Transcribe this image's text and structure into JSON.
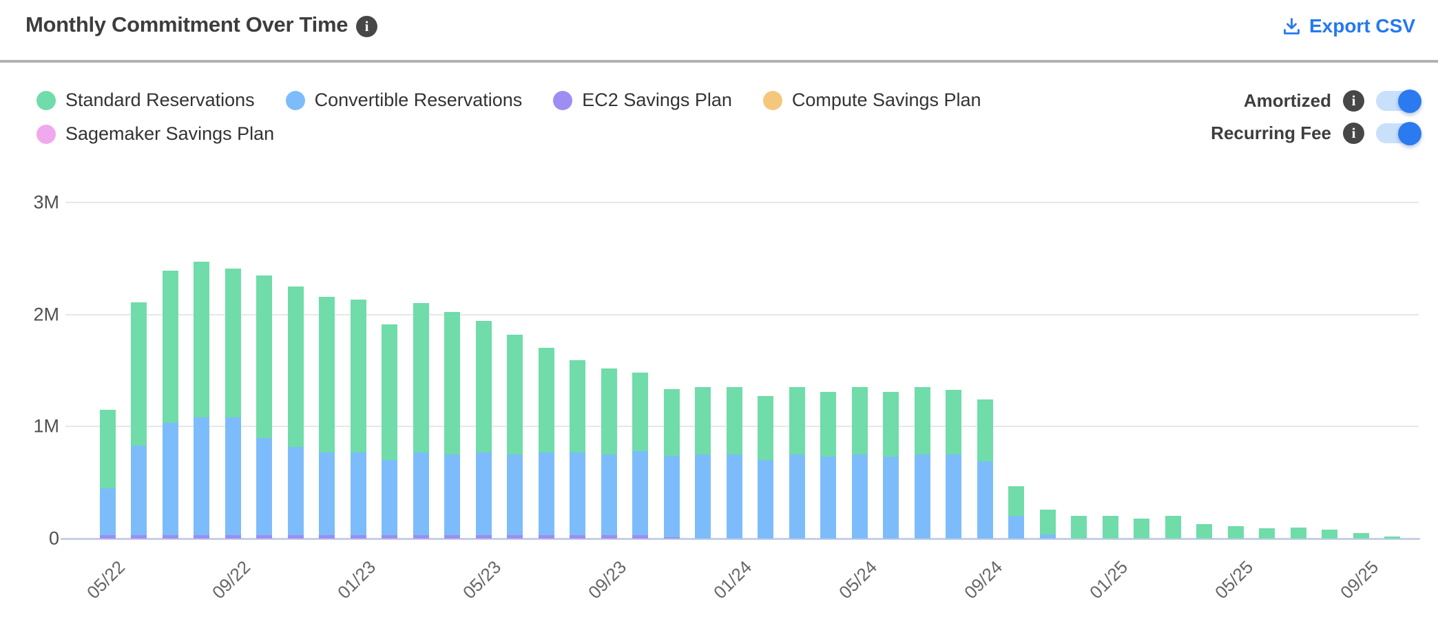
{
  "header": {
    "title": "Monthly Commitment Over Time",
    "title_info_icon": "info-icon",
    "export_csv": {
      "label": "Export CSV",
      "icon": "download-icon"
    }
  },
  "legend": {
    "items": [
      {
        "label": "Standard Reservations",
        "color": "#6FDCAA"
      },
      {
        "label": "Convertible Reservations",
        "color": "#7DBCFA"
      },
      {
        "label": "EC2 Savings Plan",
        "color": "#9E8DF2"
      },
      {
        "label": "Compute Savings Plan",
        "color": "#F5C77D"
      },
      {
        "label": "Sagemaker Savings Plan",
        "color": "#F0A9EC"
      }
    ],
    "rows": [
      [
        0,
        1,
        2,
        3
      ],
      [
        4
      ]
    ]
  },
  "controls": [
    {
      "label": "Amortized",
      "info_icon": "info-icon",
      "state": "on"
    },
    {
      "label": "Recurring Fee",
      "info_icon": "info-icon",
      "state": "on"
    }
  ],
  "colors": {
    "accent_blue": "#2478F0",
    "toggle_track": "#C9E0FB",
    "toggle_knob": "#2B7AF0",
    "info_badge": "#474747",
    "gridline": "#E7E7E7",
    "axis_line": "#C5CFE6",
    "divider": "#B1B1B1",
    "title_text": "#3D3D3D"
  },
  "chart_data": {
    "type": "bar",
    "stacked": true,
    "title": "Monthly Commitment Over Time",
    "xlabel": "",
    "ylabel": "",
    "y_ticks": [
      "0",
      "1M",
      "2M",
      "3M"
    ],
    "ylim": [
      0,
      3.27
    ],
    "grid": "horizontal",
    "legend_position": "top-left",
    "x_tick_labels": [
      "05/22",
      "09/22",
      "01/23",
      "05/23",
      "09/23",
      "01/24",
      "05/24",
      "09/24",
      "01/25",
      "05/25",
      "09/25"
    ],
    "categories": [
      "05/22",
      "06/22",
      "07/22",
      "08/22",
      "09/22",
      "10/22",
      "11/22",
      "12/22",
      "01/23",
      "02/23",
      "03/23",
      "04/23",
      "05/23",
      "06/23",
      "07/23",
      "08/23",
      "09/23",
      "10/23",
      "11/23",
      "12/23",
      "01/24",
      "02/24",
      "03/24",
      "04/24",
      "05/24",
      "06/24",
      "07/24",
      "08/24",
      "09/24",
      "10/24",
      "11/24",
      "12/24",
      "01/25",
      "02/25",
      "03/25",
      "04/25",
      "05/25",
      "06/25",
      "07/25",
      "08/25",
      "09/25",
      "10/25"
    ],
    "unit": "millions",
    "series": [
      {
        "name": "Standard Reservations",
        "color": "#6FDCAA",
        "values": [
          0.7,
          1.28,
          1.36,
          1.39,
          1.33,
          1.45,
          1.43,
          1.39,
          1.36,
          1.21,
          1.33,
          1.27,
          1.17,
          1.07,
          0.93,
          0.82,
          0.77,
          0.7,
          0.6,
          0.6,
          0.6,
          0.57,
          0.6,
          0.58,
          0.6,
          0.58,
          0.6,
          0.58,
          0.55,
          0.27,
          0.22,
          0.2,
          0.2,
          0.18,
          0.2,
          0.13,
          0.11,
          0.09,
          0.1,
          0.08,
          0.05,
          0.02
        ]
      },
      {
        "name": "Convertible Reservations",
        "color": "#7DBCFA",
        "values": [
          0.42,
          0.8,
          1.0,
          1.05,
          1.05,
          0.87,
          0.79,
          0.74,
          0.74,
          0.67,
          0.74,
          0.72,
          0.74,
          0.72,
          0.74,
          0.74,
          0.72,
          0.75,
          0.72,
          0.75,
          0.75,
          0.7,
          0.75,
          0.73,
          0.75,
          0.73,
          0.75,
          0.75,
          0.69,
          0.2,
          0.04,
          0,
          0,
          0,
          0,
          0,
          0,
          0,
          0,
          0,
          0,
          0
        ]
      },
      {
        "name": "EC2 Savings Plan",
        "color": "#9E8DF2",
        "values": [
          0.03,
          0.03,
          0.03,
          0.03,
          0.03,
          0.03,
          0.03,
          0.03,
          0.03,
          0.03,
          0.03,
          0.03,
          0.03,
          0.03,
          0.03,
          0.03,
          0.03,
          0.03,
          0.015,
          0,
          0,
          0,
          0,
          0,
          0,
          0,
          0,
          0,
          0,
          0,
          0,
          0,
          0,
          0,
          0,
          0,
          0,
          0,
          0,
          0,
          0,
          0
        ]
      },
      {
        "name": "Compute Savings Plan",
        "color": "#F5C77D",
        "values": [
          0,
          0,
          0,
          0,
          0,
          0,
          0,
          0,
          0,
          0,
          0,
          0,
          0,
          0,
          0,
          0,
          0,
          0,
          0,
          0,
          0,
          0,
          0,
          0,
          0,
          0,
          0,
          0,
          0,
          0,
          0,
          0,
          0,
          0,
          0,
          0,
          0,
          0,
          0,
          0,
          0,
          0
        ]
      },
      {
        "name": "Sagemaker Savings Plan",
        "color": "#F0A9EC",
        "values": [
          0,
          0,
          0,
          0,
          0,
          0,
          0,
          0,
          0,
          0,
          0,
          0,
          0,
          0,
          0,
          0,
          0,
          0,
          0,
          0,
          0,
          0,
          0,
          0,
          0,
          0,
          0,
          0,
          0,
          0,
          0,
          0,
          0,
          0,
          0,
          0,
          0,
          0,
          0,
          0,
          0,
          0
        ]
      }
    ],
    "stack_order_bottom_to_top": [
      "EC2 Savings Plan",
      "Convertible Reservations",
      "Standard Reservations"
    ]
  }
}
